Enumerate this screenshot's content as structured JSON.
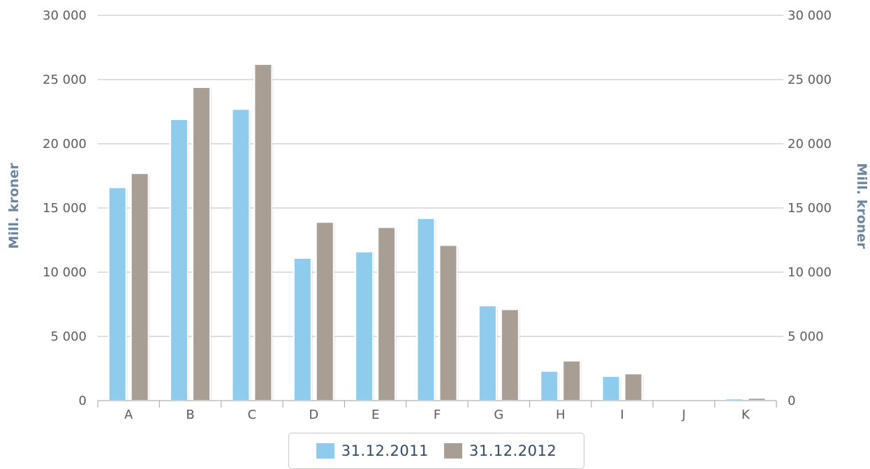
{
  "chart_data": {
    "type": "bar",
    "categories": [
      "A",
      "B",
      "C",
      "D",
      "E",
      "F",
      "G",
      "H",
      "I",
      "J",
      "K"
    ],
    "series": [
      {
        "name": "31.12.2011",
        "color": "#8fcbec",
        "values": [
          16600,
          21900,
          22700,
          11100,
          11600,
          14200,
          7400,
          2300,
          1900,
          0,
          150
        ]
      },
      {
        "name": "31.12.2012",
        "color": "#a89e93",
        "values": [
          17700,
          24400,
          26200,
          13900,
          13500,
          12100,
          7100,
          3100,
          2100,
          0,
          200
        ]
      }
    ],
    "ylabel": "Mill. kroner",
    "ylabel_right": "Mill. kroner",
    "ylim": [
      0,
      30000
    ],
    "yticks": [
      "0",
      "5 000",
      "10 000",
      "15 000",
      "20 000",
      "25 000",
      "30 000"
    ],
    "grid": true,
    "legend_position": "bottom-center"
  }
}
